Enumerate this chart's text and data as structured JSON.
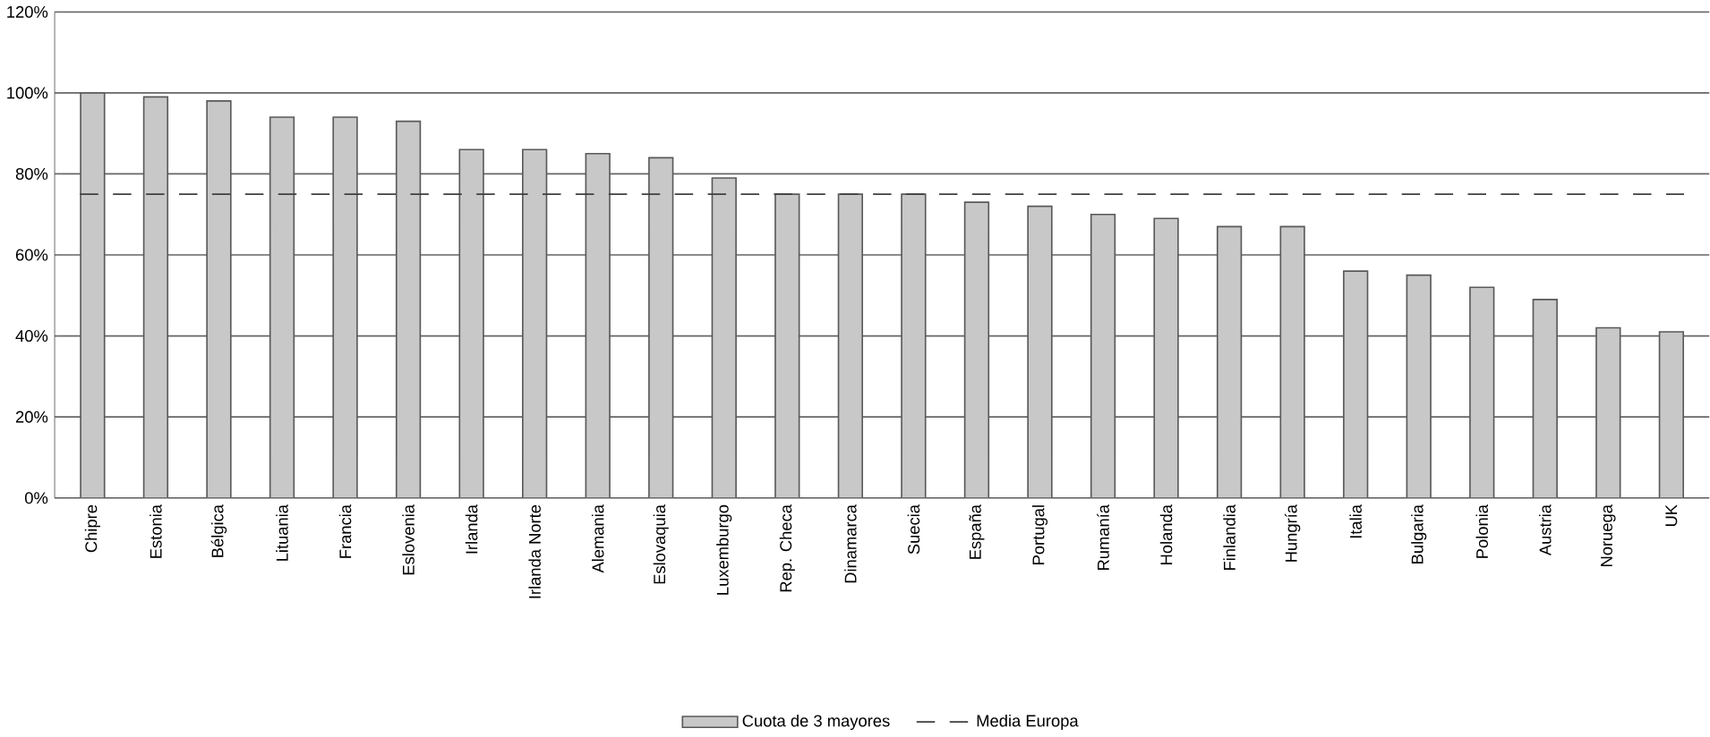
{
  "chart_data": {
    "type": "bar",
    "categories": [
      "Chipre",
      "Estonia",
      "Bélgica",
      "Lituania",
      "Francia",
      "Eslovenia",
      "Irlanda",
      "Irlanda Norte",
      "Alemania",
      "Eslovaquia",
      "Luxemburgo",
      "Rep. Checa",
      "Dinamarca",
      "Suecia",
      "España",
      "Portugal",
      "Rumanía",
      "Holanda",
      "Finlandia",
      "Hungría",
      "Italia",
      "Bulgaria",
      "Polonia",
      "Austria",
      "Noruega",
      "UK"
    ],
    "series": [
      {
        "name": "Cuota de 3 mayores",
        "color": "#c8c8c8",
        "values": [
          100,
          99,
          98,
          94,
          94,
          93,
          86,
          86,
          85,
          84,
          79,
          75,
          75,
          75,
          73,
          72,
          70,
          69,
          67,
          67,
          56,
          55,
          52,
          49,
          42,
          41
        ]
      }
    ],
    "ylim": [
      0,
      120
    ],
    "yticks": [
      {
        "value": 0,
        "label": "0%"
      },
      {
        "value": 20,
        "label": "20%"
      },
      {
        "value": 40,
        "label": "40%"
      },
      {
        "value": 60,
        "label": "60%"
      },
      {
        "value": 80,
        "label": "80%"
      },
      {
        "value": 100,
        "label": "100%"
      },
      {
        "value": 120,
        "label": "120%"
      }
    ],
    "ref_lines": [
      {
        "axis": "y",
        "value": 75,
        "label": "Media Europa",
        "color": "#404040",
        "line_style": "dashed"
      }
    ],
    "grid": "y",
    "legend": "bottom"
  }
}
